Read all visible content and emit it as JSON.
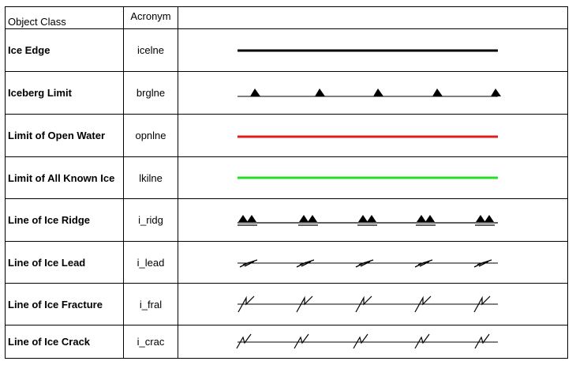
{
  "table": {
    "headers": {
      "object_class": "Object Class",
      "acronym": "Acronym",
      "symbol": ""
    },
    "rows": [
      {
        "object_class": "Ice Edge",
        "acronym": "icelne",
        "symbol": "line-black"
      },
      {
        "object_class": "Iceberg Limit",
        "acronym": "brglne",
        "symbol": "line-triangles"
      },
      {
        "object_class": "Limit of Open Water",
        "acronym": "opnlne",
        "symbol": "line-red"
      },
      {
        "object_class": "Limit of All Known Ice",
        "acronym": "lkilne",
        "symbol": "line-green"
      },
      {
        "object_class": "Line of Ice Ridge",
        "acronym": "i_ridg",
        "symbol": "line-double-triangles"
      },
      {
        "object_class": "Line of Ice Lead",
        "acronym": "i_lead",
        "symbol": "line-lead-marks"
      },
      {
        "object_class": "Line of Ice Fracture",
        "acronym": "i_fral",
        "symbol": "line-fracture-marks"
      },
      {
        "object_class": "Line of Ice Crack",
        "acronym": "i_crac",
        "symbol": "line-crack-marks"
      }
    ]
  },
  "colors": {
    "line_black": "#000000",
    "line_red": "#e31b1b",
    "line_green": "#22e022"
  }
}
